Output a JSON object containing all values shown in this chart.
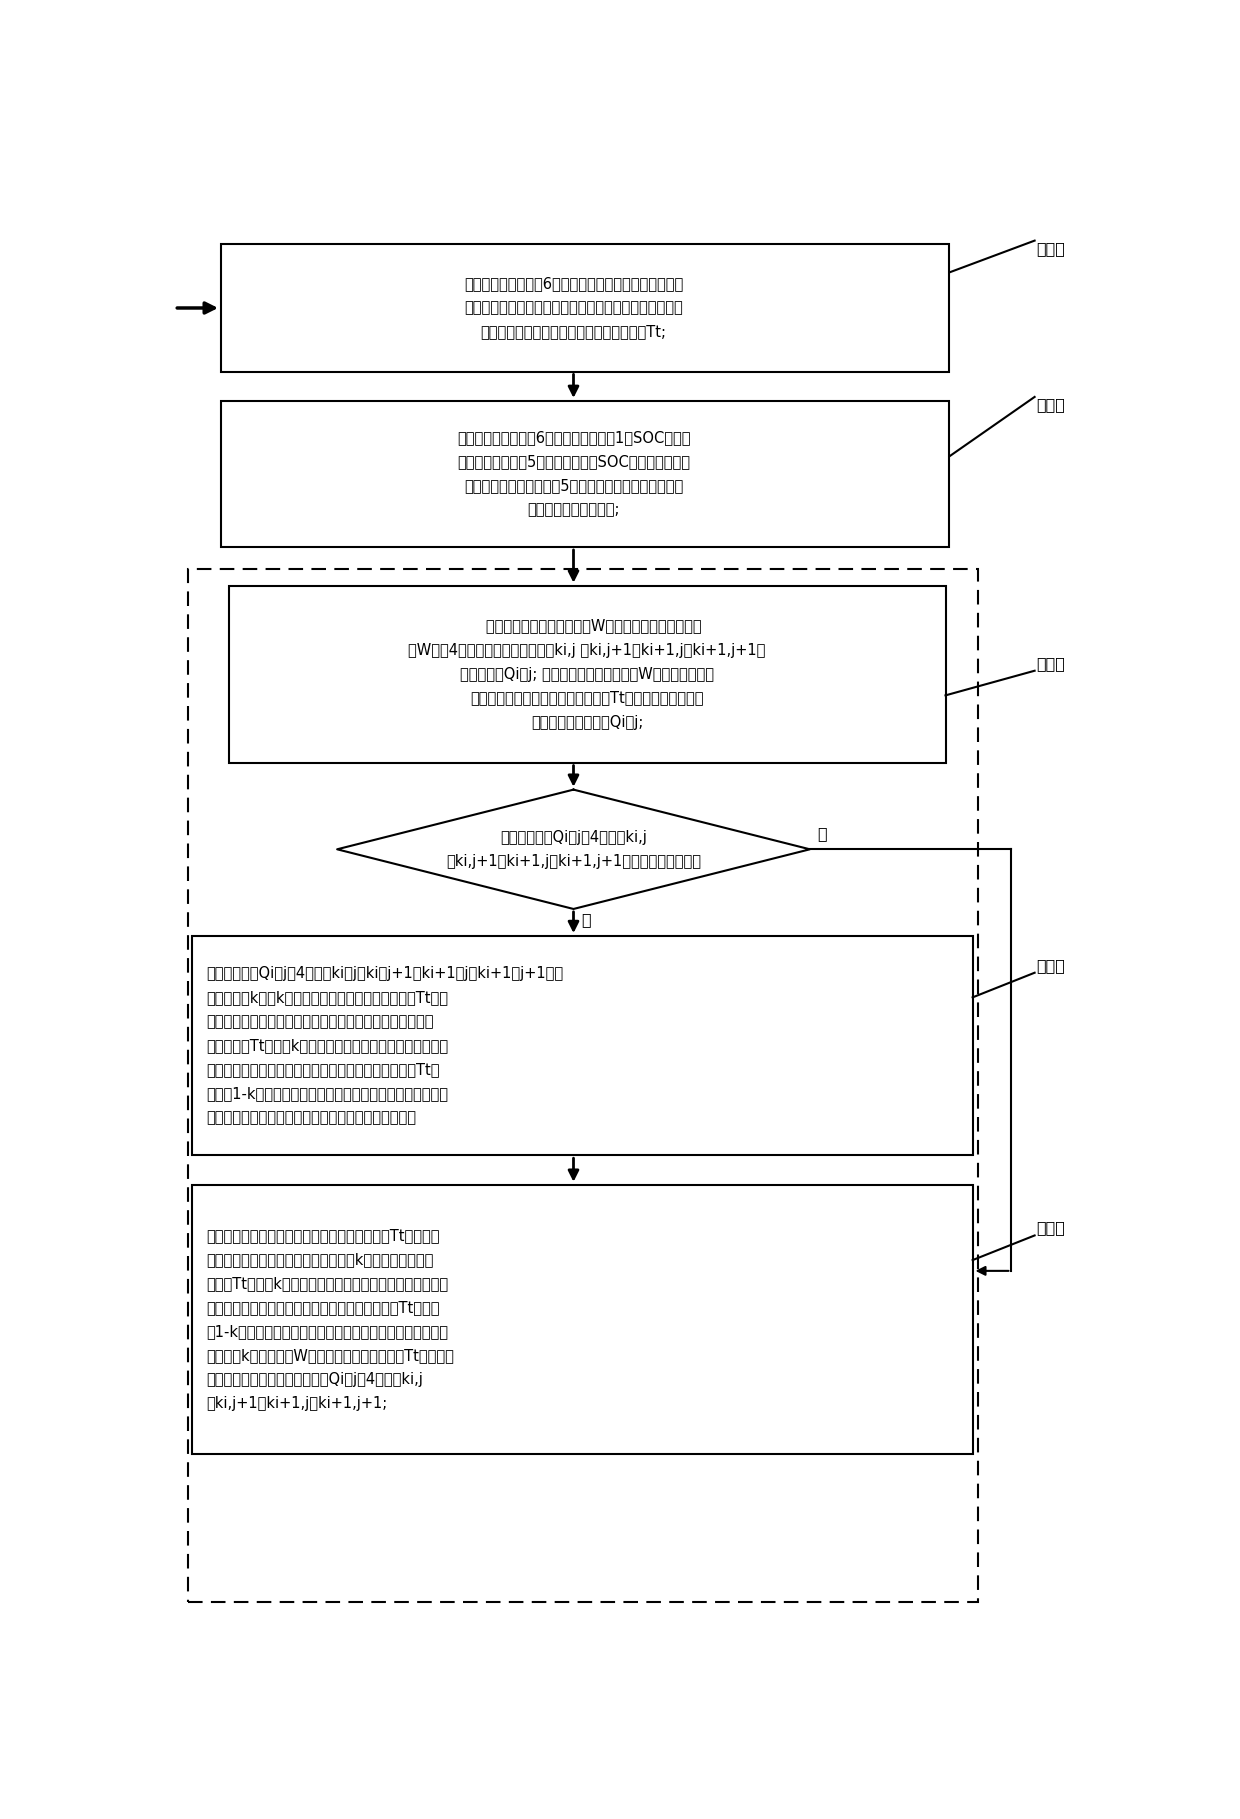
{
  "bg_color": "#ffffff",
  "box1_text": "信号检测及调理单元6实时检测电动汽车的速度信号、三\n个驱动电机的转速信号、电动汽车加速踏板开度信号，计\n算电动汽车运行过程中三个驱动电机总转矩Tt;",
  "box2_text": "信号检测及调理单元6实时检测动力电池1的SOC信号，\n发送至控制器单元5，当动力电池的SOC小于电动车允许\n运行下限时，控制器单元5发送停车指令，电动汽车停止\n运行，否则执行步骤三;",
  "box3_text": "   设定最优转矩分配系数矩阵W，在最优转矩分配系数矩\n阵W内，4个相邻转矩优化分配系数ki,j 、ki,j+1、ki+1,j、ki+1,j+1构\n成矩阵网格Qi，j; 在最优转矩分配系数矩阵W中查找步骤二获\n得的电动汽车驱动电机的目标总转矩Tt和电动汽车的实时速\n度所对应的矩阵网格Qi，j;",
  "diamond_text": "判断矩阵网格Qi，j的4个节点ki,j\n、ki,j+1、ki+1,j、ki+1,j+1中任一节点数值为空",
  "box4_text": "计算矩阵网格Qi，j的4个节点ki，j、ki，j+1、ki+1，j、ki+1，j+1的数\n值的平均值k，以k作为电动汽车三个驱动电机总转矩Tt和电\n动汽车的实时速度所对应的转矩优化分配系数；将三个驱动\n电机总转矩Tt按数值k分配给两个前轮驱动电机，两个前轮驱\n动电机平均分配所获得的转矩；将三个驱动电机总转矩Tt按\n数值（1-k）分配给后轴驱动电机；从而控制三个驱动电机输\n出转矩，实现插电式四驱混合动力汽车转矩分配控制；",
  "box5_text": "采用搜索法搜索电动汽车三个驱动电机的总转矩Tt和电动汽\n车的实时速度所对应的转矩优分配系数k，将三个驱动电机\n总转矩Tt按数值k分配给两个前轮驱动电机，两个前轮驱动电\n机平均分配所获得的转矩；将三个驱动电机总转矩Tt按数值\n（1-k）分配给后轴驱动电机，控制驱动电机输出目标转矩，\n并将数值k赋值给矩阵W内的三个驱动电机总转矩Tt和电动汽\n车的实时速度所对应的矩阵网格Qi，j的4个节点ki,j\n、ki,j+1、ki+1,j、ki+1,j+1;",
  "step_labels": [
    "步骤一",
    "步骤二",
    "步骤三",
    "步骤四",
    "步骤五"
  ],
  "yes_label": "是",
  "no_label": "否",
  "font_size": 10.5,
  "step_font_size": 11.5
}
